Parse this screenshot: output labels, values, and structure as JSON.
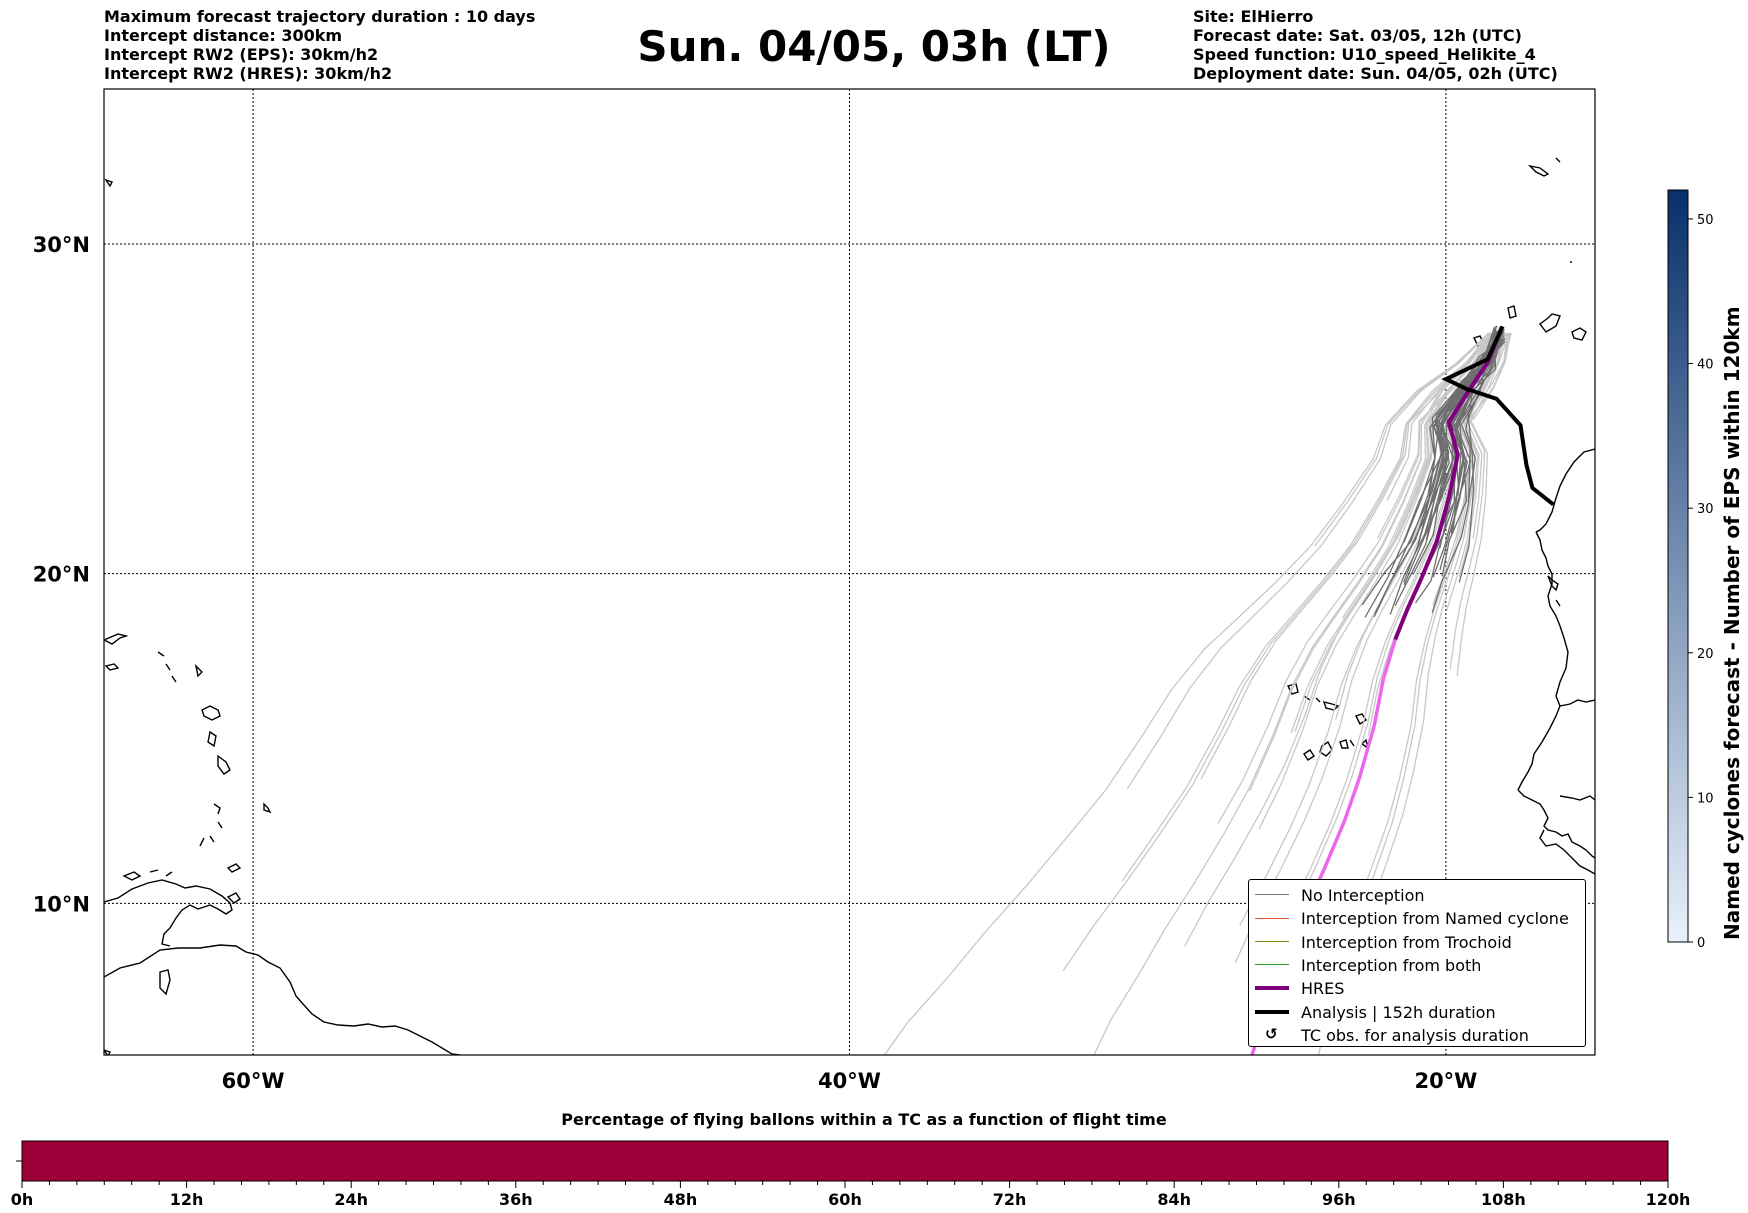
{
  "header": {
    "left_lines": [
      "Maximum forecast trajectory duration : 10 days",
      "Intercept distance: 300km",
      "Intercept RW2 (EPS):  30km/h2",
      "Intercept RW2 (HRES): 30km/h2"
    ],
    "title": "Sun. 04/05, 03h (LT)",
    "right_lines": [
      "Site: ElHierro",
      "Forecast date: Sat. 03/05, 12h (UTC)",
      "Speed function: U10_speed_Helikite_4",
      "Deployment date: Sun. 04/05, 02h (UTC)"
    ]
  },
  "map": {
    "lon_range": [
      -65,
      -15
    ],
    "lat_range": [
      5.4,
      34.7
    ],
    "lon_ticks": [
      {
        "value": -60,
        "label": "60°W"
      },
      {
        "value": -40,
        "label": "40°W"
      },
      {
        "value": -20,
        "label": "20°W"
      }
    ],
    "lat_ticks": [
      {
        "value": 30,
        "label": "30°N"
      },
      {
        "value": 20,
        "label": "20°N"
      },
      {
        "value": 10,
        "label": "10°N"
      }
    ],
    "colors": {
      "no_interception_dark": "#6e6e6e",
      "no_interception_light": "#c8c8c8",
      "hres": "#800080",
      "hres_extension": "#ee66ee",
      "analysis": "#000000",
      "named_cyclone": "#e8552b",
      "trochoid": "#8b8b1a",
      "both": "#2a9a2a"
    },
    "hres_track": [
      [
        -18.2,
        27.3
      ],
      [
        -18.6,
        26.4
      ],
      [
        -19.2,
        25.6
      ],
      [
        -19.9,
        24.6
      ],
      [
        -19.6,
        23.6
      ],
      [
        -19.9,
        22.3
      ],
      [
        -20.3,
        21.0
      ],
      [
        -20.8,
        19.9
      ],
      [
        -21.3,
        18.9
      ],
      [
        -21.7,
        18.0
      ]
    ],
    "hres_extension": [
      [
        -21.7,
        18.0
      ],
      [
        -22.1,
        16.8
      ],
      [
        -22.4,
        15.4
      ],
      [
        -22.9,
        13.8
      ],
      [
        -23.4,
        12.5
      ],
      [
        -24.1,
        11.0
      ],
      [
        -24.8,
        9.6
      ],
      [
        -25.4,
        8.2
      ],
      [
        -26.0,
        6.9
      ],
      [
        -26.5,
        5.4
      ]
    ],
    "analysis_track": [
      [
        -18.1,
        27.5
      ],
      [
        -18.6,
        26.5
      ],
      [
        -19.3,
        26.2
      ],
      [
        -20.0,
        25.9
      ],
      [
        -19.3,
        25.6
      ],
      [
        -18.3,
        25.3
      ],
      [
        -17.5,
        24.5
      ],
      [
        -17.3,
        23.3
      ],
      [
        -17.1,
        22.6
      ],
      [
        -16.4,
        22.1
      ]
    ]
  },
  "legend": {
    "items": [
      {
        "label": "No Interception",
        "kind": "line",
        "color": "#777777",
        "width": 1.5
      },
      {
        "label": "Interception from Named cyclone",
        "kind": "line",
        "color": "#e8552b",
        "width": 1.5
      },
      {
        "label": "Interception from Trochoid",
        "kind": "line",
        "color": "#8b8b1a",
        "width": 1.5
      },
      {
        "label": "Interception from both",
        "kind": "line",
        "color": "#2a9a2a",
        "width": 1.5
      },
      {
        "label": "HRES",
        "kind": "line",
        "color": "#800080",
        "width": 4
      },
      {
        "label": "Analysis | 152h duration",
        "kind": "line",
        "color": "#000000",
        "width": 4
      },
      {
        "label": "TC obs. for analysis duration",
        "kind": "glyph",
        "glyph": "↺"
      }
    ]
  },
  "colorbar": {
    "title": "Named cyclones forecast - Number of EPS within 120km",
    "ticks": [
      0,
      10,
      20,
      30,
      40,
      50
    ],
    "max": 52,
    "color_low": "#e8f1fb",
    "color_high": "#08306b"
  },
  "progress": {
    "title": "Percentage of flying ballons within a TC as a function of flight time",
    "bar_color": "#9e003a",
    "ticks": [
      "0h",
      "12h",
      "24h",
      "36h",
      "48h",
      "60h",
      "72h",
      "84h",
      "96h",
      "108h",
      "120h"
    ]
  }
}
